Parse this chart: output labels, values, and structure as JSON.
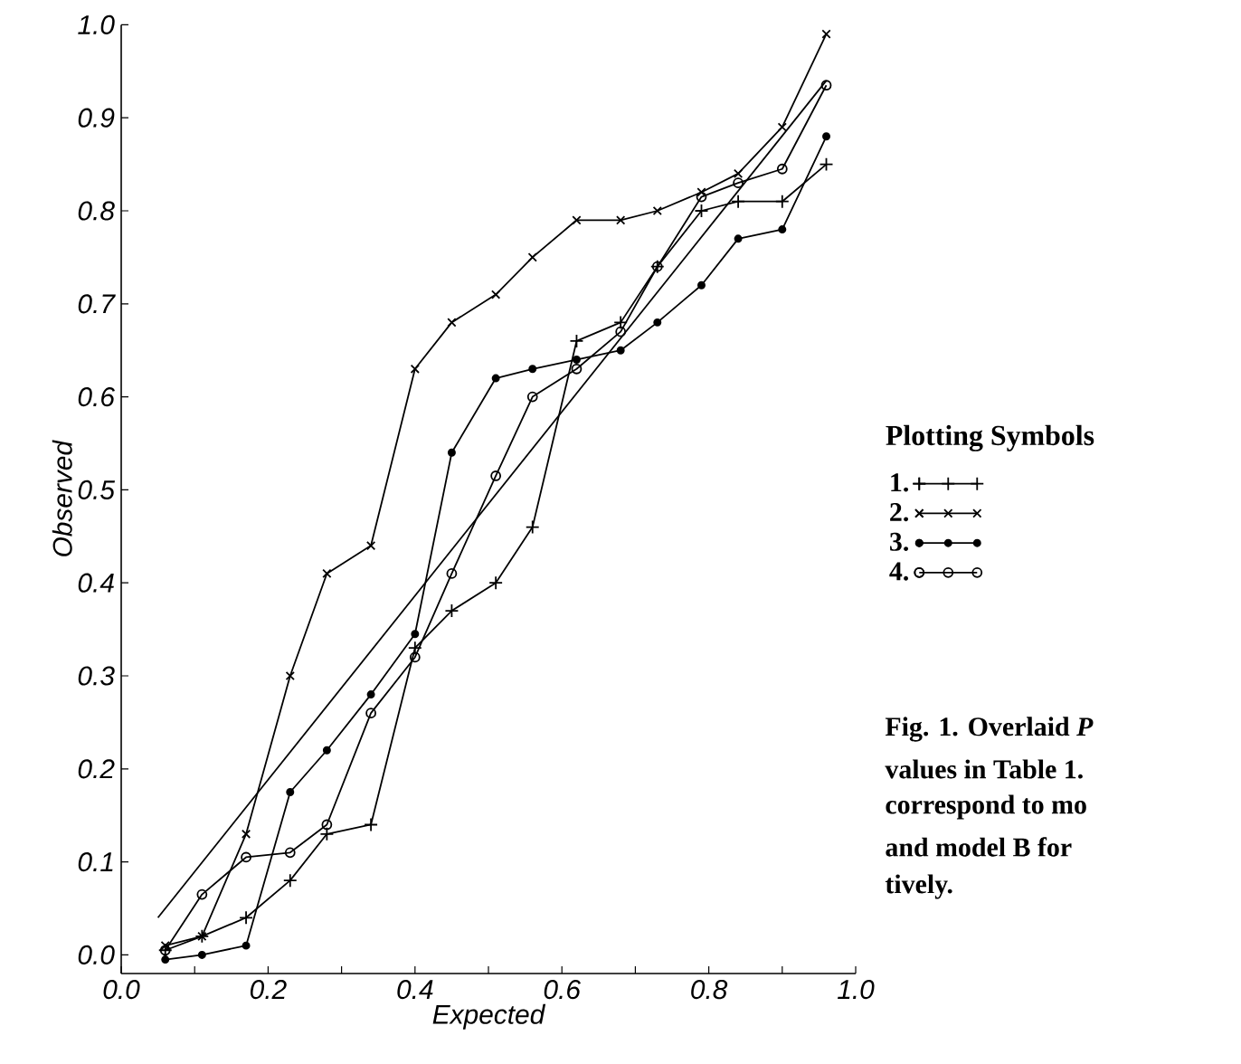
{
  "chart_data": {
    "type": "line",
    "xlabel": "Expected",
    "ylabel": "Observed",
    "legend_title": "Plotting Symbols",
    "legend": "right",
    "line_style": "solid",
    "x": [
      0.06,
      0.11,
      0.17,
      0.23,
      0.28,
      0.34,
      0.4,
      0.45,
      0.51,
      0.56,
      0.62,
      0.68,
      0.73,
      0.79,
      0.84,
      0.9,
      0.96
    ],
    "series": [
      {
        "name": "1.",
        "color": "#000000",
        "marker": "plus",
        "values": [
          0.005,
          0.02,
          0.04,
          0.08,
          0.13,
          0.14,
          0.33,
          0.37,
          0.4,
          0.46,
          0.66,
          0.68,
          0.74,
          0.8,
          0.81,
          0.81,
          0.85
        ]
      },
      {
        "name": "2.",
        "color": "#000000",
        "marker": "cross",
        "values": [
          0.01,
          0.02,
          0.13,
          0.3,
          0.41,
          0.44,
          0.63,
          0.68,
          0.71,
          0.75,
          0.79,
          0.79,
          0.8,
          0.82,
          0.84,
          0.89,
          0.99
        ]
      },
      {
        "name": "3.",
        "color": "#000000",
        "marker": "dot",
        "values": [
          -0.005,
          0.0,
          0.01,
          0.175,
          0.22,
          0.28,
          0.345,
          0.54,
          0.62,
          0.63,
          0.64,
          0.65,
          0.68,
          0.72,
          0.77,
          0.78,
          0.88
        ]
      },
      {
        "name": "4.",
        "color": "#000000",
        "marker": "circle",
        "values": [
          0.005,
          0.065,
          0.105,
          0.11,
          0.14,
          0.26,
          0.32,
          0.41,
          0.515,
          0.6,
          0.63,
          0.67,
          0.74,
          0.815,
          0.83,
          0.845,
          0.935
        ]
      },
      {
        "type": "line",
        "color": "#000000",
        "marker": "none",
        "x": [
          0.05,
          0.96
        ],
        "values": [
          0.04,
          0.94
        ]
      }
    ],
    "xlim": [
      0,
      1
    ],
    "ylim": [
      -0.02,
      1.0
    ],
    "xticks": [
      {
        "value": 0,
        "label": "0.0"
      },
      {
        "value": 0.1,
        "label": null
      },
      {
        "value": 0.2,
        "label": "0.2"
      },
      {
        "value": 0.3,
        "label": null
      },
      {
        "value": 0.4,
        "label": "0.4"
      },
      {
        "value": 0.5,
        "label": null
      },
      {
        "value": 0.6,
        "label": "0.6"
      },
      {
        "value": 0.7,
        "label": null
      },
      {
        "value": 0.8,
        "label": "0.8"
      },
      {
        "value": 0.9,
        "label": null
      },
      {
        "value": 1.0,
        "label": "1.0"
      }
    ],
    "yticks": [
      {
        "value": 0,
        "label": "0.0"
      },
      {
        "value": 0.1,
        "label": "0.1"
      },
      {
        "value": 0.2,
        "label": "0.2"
      },
      {
        "value": 0.3,
        "label": "0.3"
      },
      {
        "value": 0.4,
        "label": "0.4"
      },
      {
        "value": 0.5,
        "label": "0.5"
      },
      {
        "value": 0.6,
        "label": "0.6"
      },
      {
        "value": 0.7,
        "label": "0.7"
      },
      {
        "value": 0.8,
        "label": "0.8"
      },
      {
        "value": 0.9,
        "label": "0.9"
      },
      {
        "value": 1.0,
        "label": "1.0"
      }
    ],
    "annotations": [
      "Fig. 1. Overlaid *P*",
      "values in Table 1.",
      "correspond to mo",
      "and model B for",
      "tively."
    ]
  }
}
